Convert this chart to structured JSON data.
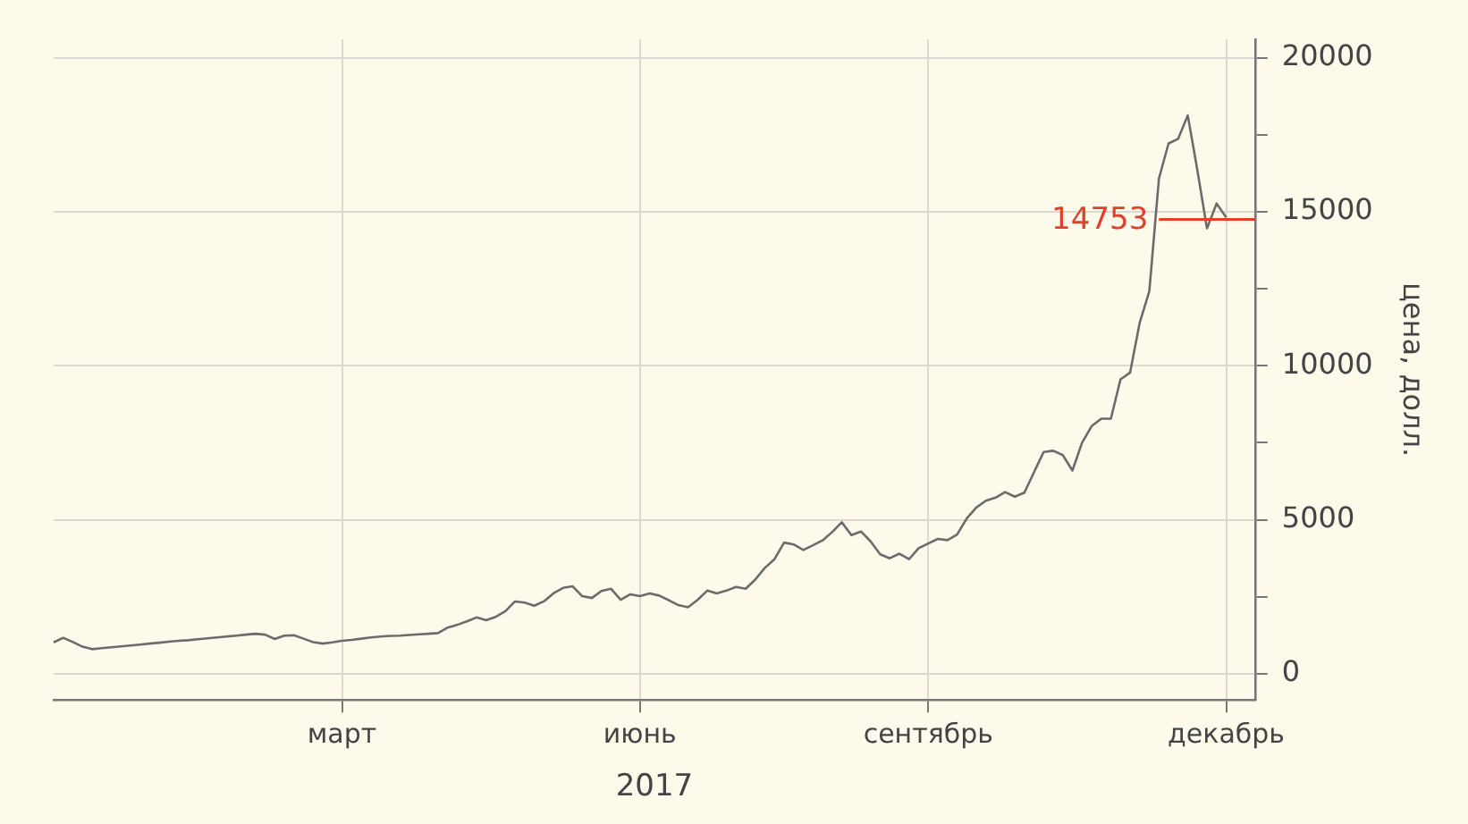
{
  "chart_data": {
    "type": "line",
    "xlabel": "2017",
    "ylabel": "цена, долл.",
    "categories": [
      null,
      null,
      null,
      null,
      null,
      null,
      null,
      null,
      null,
      null,
      null,
      null,
      null,
      null,
      null,
      null,
      null,
      null,
      null,
      null,
      null,
      null,
      null,
      null,
      null,
      null,
      null,
      null,
      null,
      null,
      "март",
      null,
      null,
      null,
      null,
      null,
      null,
      null,
      null,
      null,
      null,
      null,
      null,
      null,
      null,
      null,
      null,
      null,
      null,
      null,
      null,
      null,
      null,
      null,
      null,
      null,
      null,
      null,
      null,
      null,
      null,
      "июнь",
      null,
      null,
      null,
      null,
      null,
      null,
      null,
      null,
      null,
      null,
      null,
      null,
      null,
      null,
      null,
      null,
      null,
      null,
      null,
      null,
      null,
      null,
      null,
      null,
      null,
      null,
      null,
      null,
      null,
      "сентябрь",
      null,
      null,
      null,
      null,
      null,
      null,
      null,
      null,
      null,
      null,
      null,
      null,
      null,
      null,
      null,
      null,
      null,
      null,
      null,
      null,
      null,
      null,
      null,
      null,
      null,
      null,
      null,
      null,
      null,
      null,
      "декабрь",
      null,
      null,
      null
    ],
    "series": [
      {
        "color": "#6b6b6b",
        "values": [
          1020,
          1170,
          1030,
          880,
          800,
          830,
          860,
          890,
          920,
          950,
          980,
          1010,
          1040,
          1070,
          1090,
          1120,
          1150,
          1180,
          1210,
          1240,
          1270,
          1300,
          1270,
          1130,
          1240,
          1250,
          1140,
          1030,
          980,
          1020,
          1070,
          1100,
          1140,
          1180,
          1210,
          1230,
          1240,
          1260,
          1280,
          1300,
          1320,
          1500,
          1590,
          1700,
          1830,
          1740,
          1850,
          2030,
          2350,
          2310,
          2210,
          2350,
          2610,
          2790,
          2840,
          2520,
          2460,
          2690,
          2760,
          2400,
          2580,
          2520,
          2610,
          2540,
          2390,
          2230,
          2160,
          2400,
          2700,
          2610,
          2700,
          2820,
          2760,
          3060,
          3440,
          3720,
          4260,
          4200,
          4020,
          4170,
          4330,
          4600,
          4920,
          4500,
          4620,
          4300,
          3880,
          3750,
          3900,
          3720,
          4080,
          4230,
          4380,
          4340,
          4520,
          5040,
          5400,
          5620,
          5720,
          5900,
          5750,
          5880,
          6540,
          7200,
          7240,
          7100,
          6600,
          7500,
          8040,
          8280,
          8280,
          9560,
          9780,
          11400,
          12420,
          16080,
          17220,
          17370,
          18130,
          16350,
          14460,
          15270,
          14820,
          null,
          null,
          null
        ]
      }
    ],
    "ylim": [
      -850,
      20600
    ],
    "yticks": [
      0,
      {
        "value": 2500,
        "label": null
      },
      5000,
      {
        "value": 7500,
        "label": null
      },
      10000,
      {
        "value": 12500,
        "label": null
      },
      15000,
      {
        "value": 17500,
        "label": null
      },
      20000
    ],
    "ref_lines": [
      {
        "axis": "y",
        "value": 14753,
        "label": "14753",
        "color": "#e0412c"
      }
    ],
    "grid": true,
    "legend": false,
    "marker": "none",
    "line_style": "solid"
  }
}
